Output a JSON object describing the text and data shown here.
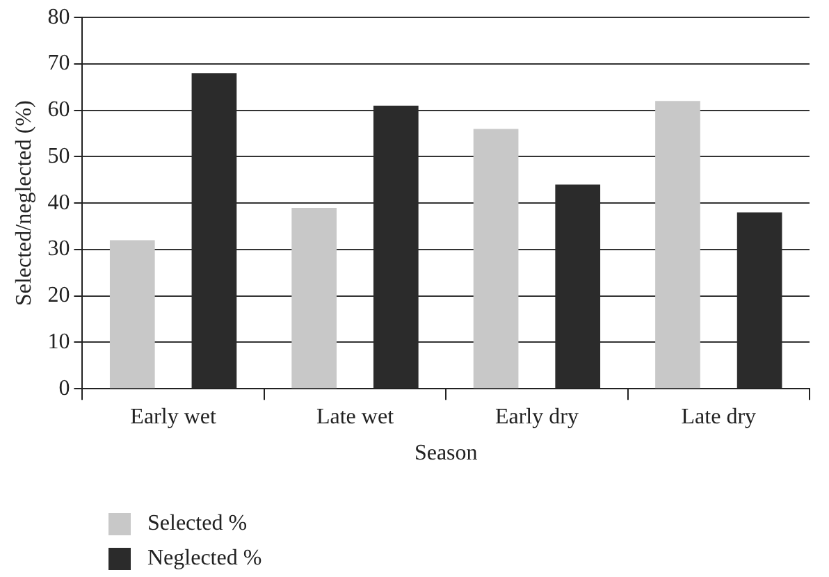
{
  "chart_data": {
    "type": "bar",
    "xlabel": "Season",
    "ylabel": "Selected/neglected (%)",
    "categories": [
      "Early wet",
      "Late wet",
      "Early dry",
      "Late dry"
    ],
    "series": [
      {
        "name": "Selected %",
        "color": "#c8c8c8",
        "values": [
          32,
          39,
          56,
          62
        ]
      },
      {
        "name": "Neglected %",
        "color": "#2b2b2b",
        "values": [
          68,
          61,
          44,
          38
        ]
      }
    ],
    "ylim": [
      0,
      80
    ],
    "yticks": [
      0,
      10,
      20,
      30,
      40,
      50,
      60,
      70,
      80
    ],
    "grid": "y",
    "legend": "bottom left"
  }
}
